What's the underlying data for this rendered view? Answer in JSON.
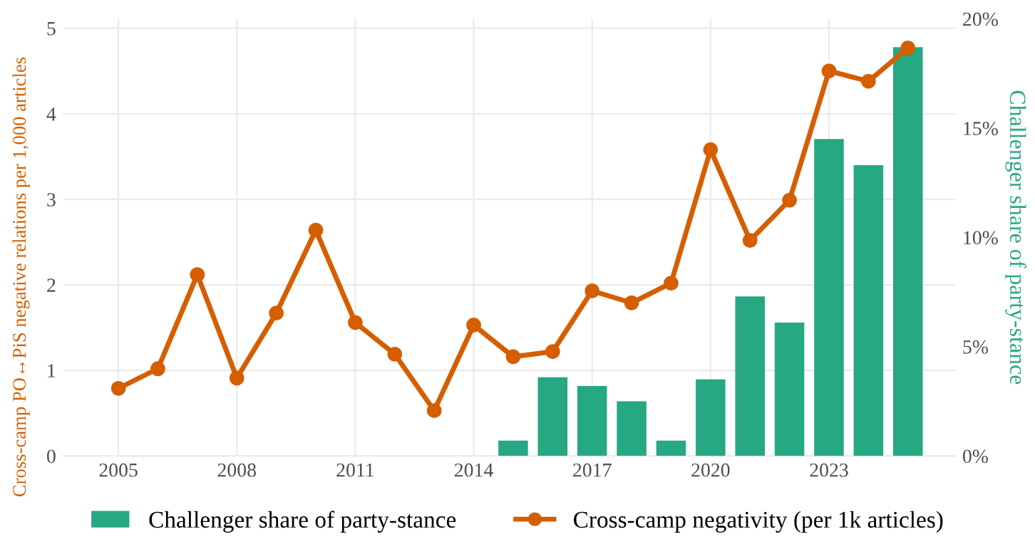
{
  "chart_data": {
    "type": "bar",
    "xlabel": null,
    "ylabel": "Cross-camp PO↔PiS negative relations per 1,000 articles",
    "y2label": "Challenger share of party-stance",
    "x": [
      2005,
      2006,
      2007,
      2008,
      2009,
      2010,
      2011,
      2012,
      2013,
      2014,
      2015,
      2016,
      2017,
      2018,
      2019,
      2020,
      2021,
      2022,
      2023,
      2024,
      2025
    ],
    "series": [
      {
        "name": "Challenger share of party-stance",
        "axis": "y2",
        "color": "#26a883",
        "values": [
          0,
          0,
          0,
          0,
          0,
          0,
          0,
          0,
          0,
          0,
          0.7,
          3.6,
          3.2,
          2.5,
          0.7,
          3.5,
          7.3,
          6.1,
          14.5,
          13.3,
          18.7
        ]
      },
      {
        "name": "Cross-camp negativity (per 1k articles)",
        "type": "line",
        "color": "#d55e00",
        "marker": "circle",
        "line_style": "solid",
        "values": [
          0.79,
          1.02,
          2.12,
          0.91,
          1.67,
          2.64,
          1.56,
          1.19,
          0.53,
          1.53,
          1.16,
          1.22,
          1.93,
          1.79,
          2.02,
          3.58,
          2.52,
          2.99,
          4.5,
          4.38,
          4.77
        ]
      }
    ],
    "xlim": [
      2003.6,
      2026.2
    ],
    "xticks": [
      2005,
      2008,
      2011,
      2014,
      2017,
      2020,
      2023
    ],
    "ylim": [
      0,
      5.11
    ],
    "yticks": [
      0,
      1,
      2,
      3,
      4,
      5
    ],
    "y2lim": [
      0,
      20
    ],
    "y2ticks": [
      {
        "value": 0,
        "label": "0%"
      },
      {
        "value": 5,
        "label": "5%"
      },
      {
        "value": 10,
        "label": "10%"
      },
      {
        "value": 15,
        "label": "15%"
      },
      {
        "value": 20,
        "label": "20%"
      }
    ],
    "grid": true,
    "legend": "bottom"
  }
}
